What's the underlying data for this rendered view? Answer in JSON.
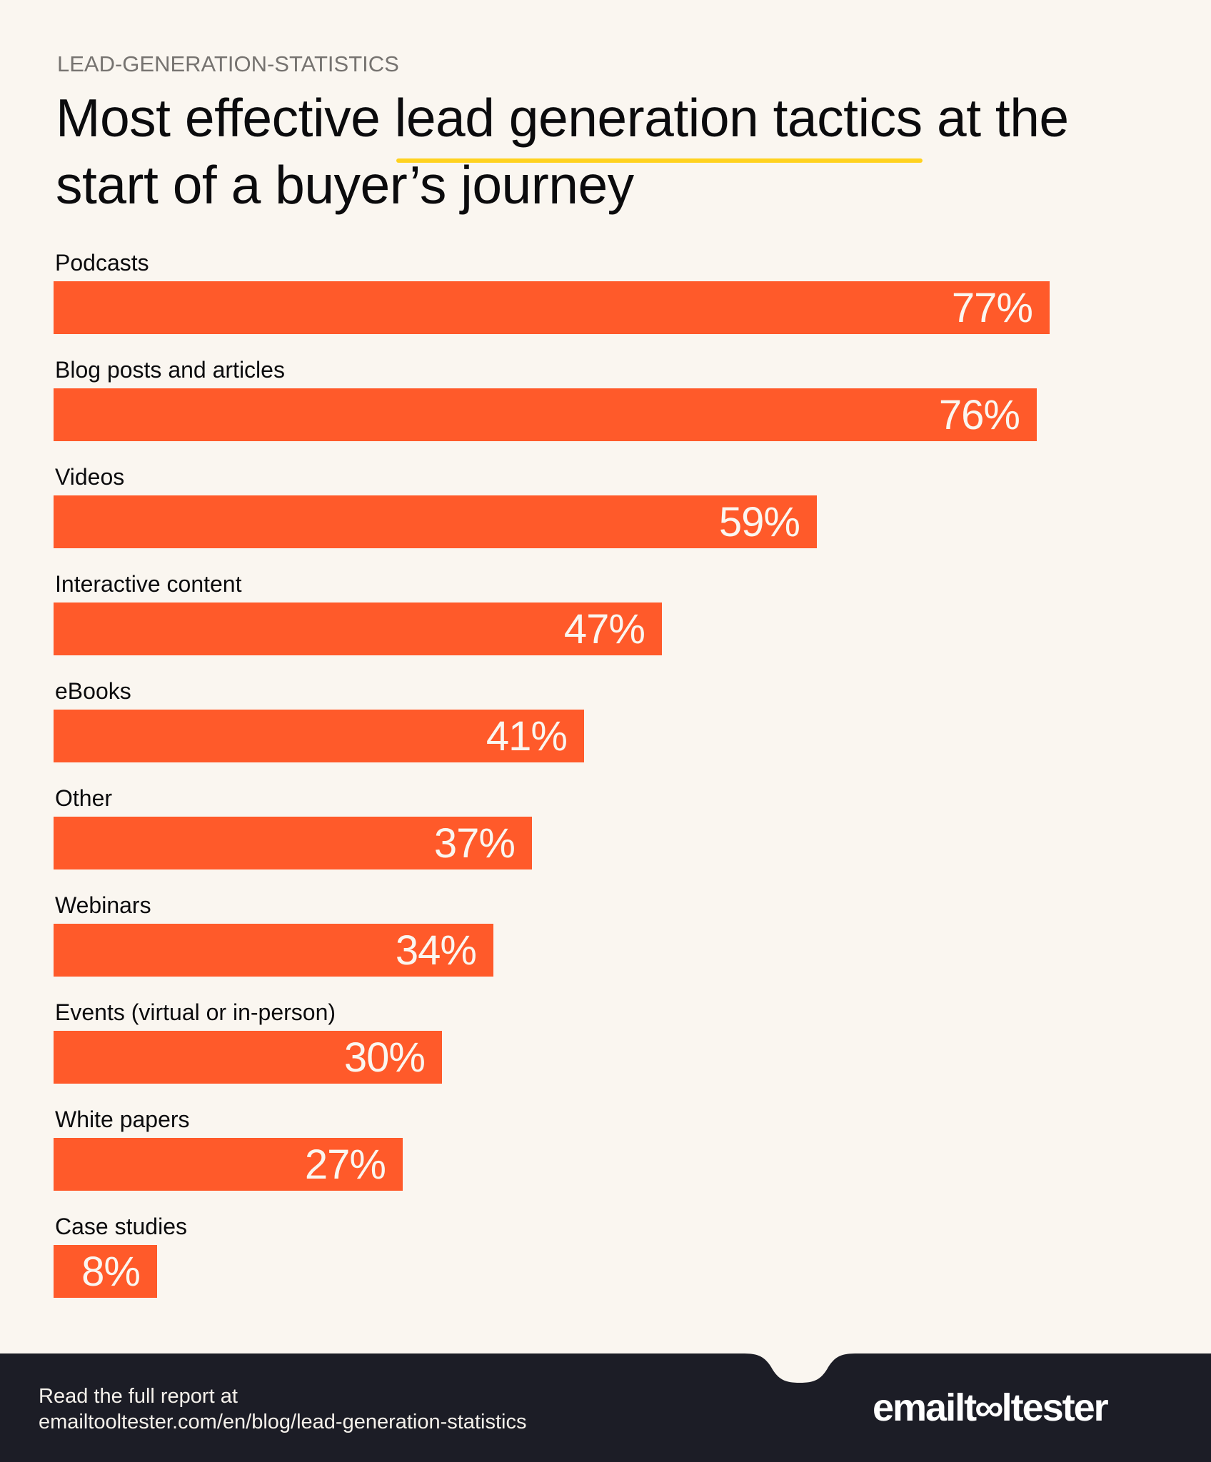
{
  "header": {
    "eyebrow": "LEAD-GENERATION-STATISTICS",
    "title_before": "Most effective ",
    "title_highlight": "lead generation tactics",
    "title_after": " at the start of a buyer’s journey"
  },
  "colors": {
    "background": "#FAF6F0",
    "bar": "#FF5A2A",
    "highlight_underline": "#FFD21F",
    "footer_bg": "#1C1D26",
    "eyebrow_text": "#767370"
  },
  "chart_data": {
    "type": "bar",
    "orientation": "horizontal",
    "title": "Most effective lead generation tactics at the start of a buyer’s journey",
    "subtitle": "LEAD-GENERATION-STATISTICS",
    "xlabel": "",
    "ylabel": "",
    "unit": "%",
    "grid": false,
    "legend": null,
    "xlim": [
      0,
      100
    ],
    "categories": [
      "Podcasts",
      "Blog posts and articles",
      "Videos",
      "Interactive content",
      "eBooks",
      "Other",
      "Webinars",
      "Events (virtual or in-person)",
      "White papers",
      "Case studies"
    ],
    "values": [
      77,
      76,
      59,
      47,
      41,
      37,
      34,
      30,
      27,
      8
    ],
    "value_labels": [
      "77%",
      "76%",
      "59%",
      "47%",
      "41%",
      "37%",
      "34%",
      "30%",
      "27%",
      "8%"
    ]
  },
  "footer": {
    "line1": "Read the full report at",
    "line2": "emailtooltester.com/en/blog/lead-generation-statistics",
    "logo_left": "emailt",
    "logo_mid": "∞",
    "logo_right": "ltester"
  }
}
